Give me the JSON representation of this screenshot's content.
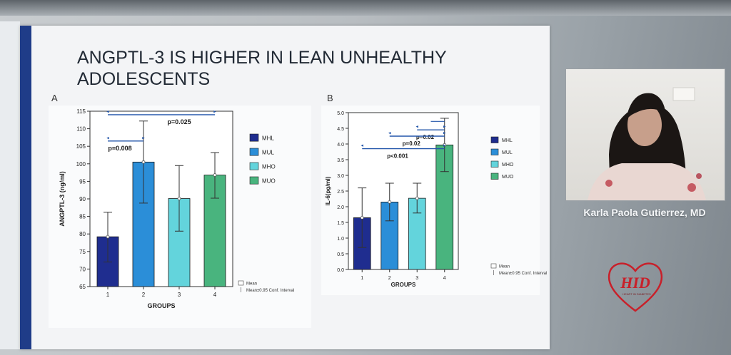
{
  "slide": {
    "title": "ANGPTL-3  IS HIGHER IN LEAN UNHEALTHY ADOLESCENTS",
    "panel_a_label": "A",
    "panel_b_label": "B"
  },
  "speaker": {
    "name": "Karla Paola Gutierrez, MD"
  },
  "logo": {
    "text": "HID",
    "subtitle": "HEART IN DIABETES",
    "color": "#c8202a"
  },
  "chart_data": [
    {
      "type": "bar",
      "categories": [
        "1",
        "2",
        "3",
        "4"
      ],
      "values": [
        79.2,
        100.5,
        90.1,
        96.8
      ],
      "ci_low": [
        72.0,
        88.8,
        80.8,
        90.2
      ],
      "ci_high": [
        86.2,
        112.2,
        99.5,
        103.2
      ],
      "colors": [
        "#1f2d8f",
        "#2b8ed8",
        "#63d4dc",
        "#49b47e"
      ],
      "xlabel": "GROUPS",
      "ylabel": "ANGPTL-3 (ng/ml)",
      "ylim": [
        65,
        115
      ],
      "yticks": [
        65,
        70,
        75,
        80,
        85,
        90,
        95,
        100,
        105,
        110,
        115
      ],
      "legend": [
        "MHL",
        "MUL",
        "MHO",
        "MUO"
      ],
      "legend_position": "right",
      "ci_legend": {
        "mean": "Mean",
        "ci": "Mean±0.95 Conf. Interval"
      },
      "annotations": [
        {
          "text": "p=0.008",
          "from": 1,
          "to": 2,
          "level": 106.5
        },
        {
          "text": "p=0.025",
          "from": 1,
          "to": 4,
          "level": 114.0
        }
      ]
    },
    {
      "type": "bar",
      "categories": [
        "1",
        "2",
        "3",
        "4"
      ],
      "values": [
        1.65,
        2.15,
        2.27,
        3.97
      ],
      "ci_low": [
        0.7,
        1.55,
        1.8,
        3.12
      ],
      "ci_high": [
        2.6,
        2.75,
        2.75,
        4.82
      ],
      "colors": [
        "#1f2d8f",
        "#2b8ed8",
        "#63d4dc",
        "#49b47e"
      ],
      "xlabel": "GROUPS",
      "ylabel": "IL-6(pg/ml)",
      "ylim": [
        0,
        5
      ],
      "yticks": [
        "0.0",
        "0.5",
        "1.0",
        "1.5",
        "2.0",
        "2.5",
        "3.0",
        "3.5",
        "4.0",
        "4.5",
        "5.0"
      ],
      "legend": [
        "MHL",
        "MUL",
        "MHO",
        "MUO"
      ],
      "legend_position": "right",
      "ci_legend": {
        "mean": "Mean",
        "ci": "Mean±0.95 Conf. Interval"
      },
      "annotations": [
        {
          "text": "p=0.02",
          "from": 3,
          "to": 4,
          "level": 4.45
        },
        {
          "text": "p=0.02",
          "from": 2,
          "to": 4,
          "level": 4.25
        },
        {
          "text": "p<0.001",
          "from": 1,
          "to": 4,
          "level": 3.85
        }
      ],
      "extra_brackets": [
        {
          "from": 3.5,
          "to": 4,
          "level": 4.72
        }
      ]
    }
  ]
}
